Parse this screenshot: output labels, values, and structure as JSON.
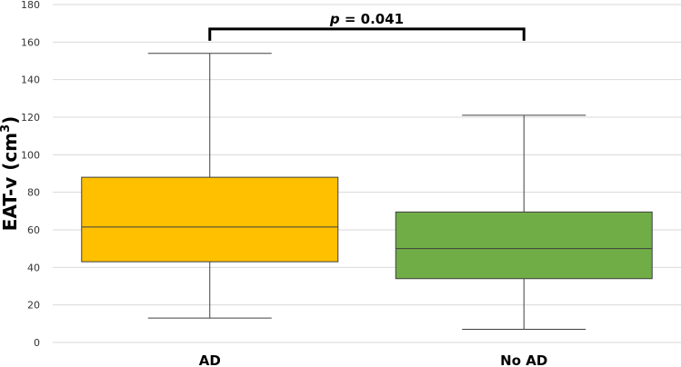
{
  "chart_data": {
    "type": "box",
    "ylabel": "EAT-v (cm",
    "ylabel_superscript": "3",
    "ylabel_suffix": ")",
    "ylim": [
      0,
      180
    ],
    "yticks": [
      "0",
      "20",
      "40",
      "60",
      "80",
      "100",
      "120",
      "140",
      "160",
      "180"
    ],
    "grid": true,
    "categories": [
      "AD",
      "No AD"
    ],
    "boxes": [
      {
        "category": "AD",
        "min": 13,
        "q1": 43,
        "median": 61.5,
        "q3": 88,
        "max": 154,
        "color": "#FFC000"
      },
      {
        "category": "No AD",
        "min": 7,
        "q1": 34,
        "median": 50,
        "q3": 69.5,
        "max": 121,
        "color": "#70AD47"
      }
    ],
    "annotation": {
      "p_symbol": "p",
      "text": " = 0.041",
      "bracket_y": 167
    }
  }
}
